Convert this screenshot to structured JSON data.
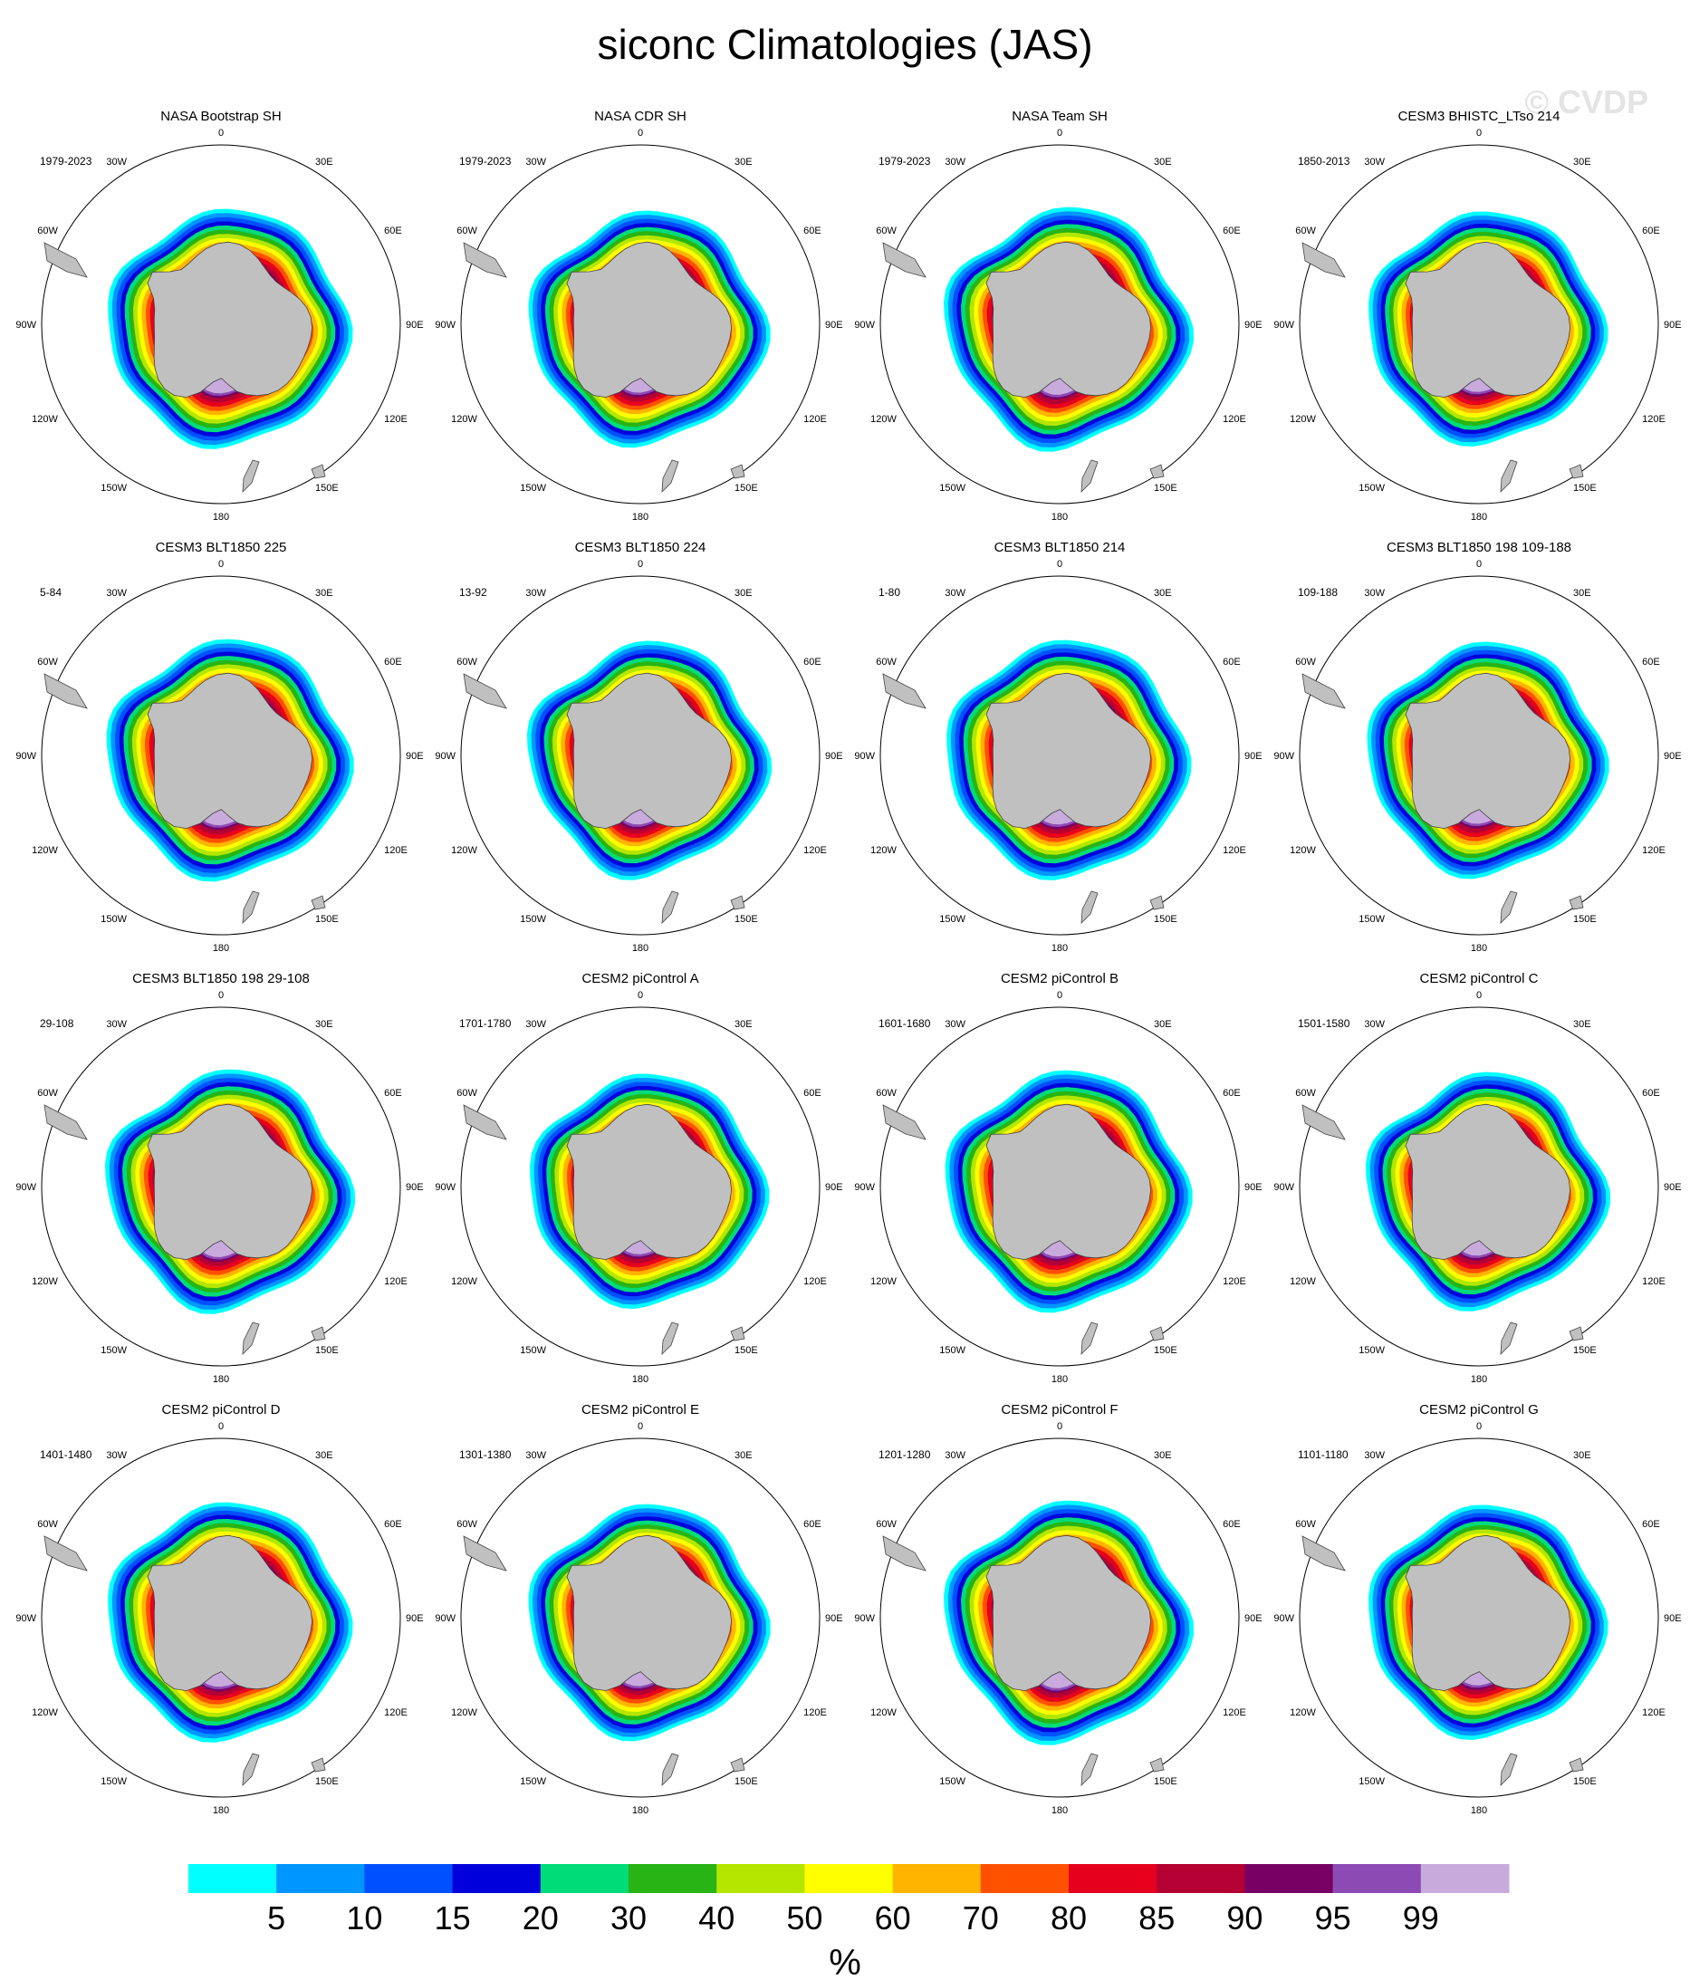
{
  "title": "siconc Climatologies (JAS)",
  "watermark": "© CVDP",
  "lon_labels": [
    "0",
    "30E",
    "60E",
    "90E",
    "120E",
    "150E",
    "180",
    "150W",
    "120W",
    "90W",
    "60W",
    "30W"
  ],
  "panels": [
    {
      "title": "NASA Bootstrap SH",
      "years": "1979-2023"
    },
    {
      "title": "NASA CDR SH",
      "years": "1979-2023"
    },
    {
      "title": "NASA Team SH",
      "years": "1979-2023"
    },
    {
      "title": "CESM3 BHISTC_LTso 214",
      "years": "1850-2013"
    },
    {
      "title": "CESM3 BLT1850 225",
      "years": "5-84"
    },
    {
      "title": "CESM3 BLT1850 224",
      "years": "13-92"
    },
    {
      "title": "CESM3 BLT1850 214",
      "years": "1-80"
    },
    {
      "title": "CESM3 BLT1850 198 109-188",
      "years": "109-188"
    },
    {
      "title": "CESM3 BLT1850 198 29-108",
      "years": "29-108"
    },
    {
      "title": "CESM2 piControl A",
      "years": "1701-1780"
    },
    {
      "title": "CESM2 piControl B",
      "years": "1601-1680"
    },
    {
      "title": "CESM2 piControl C",
      "years": "1501-1580"
    },
    {
      "title": "CESM2 piControl D",
      "years": "1401-1480"
    },
    {
      "title": "CESM2 piControl E",
      "years": "1301-1380"
    },
    {
      "title": "CESM2 piControl F",
      "years": "1201-1280"
    },
    {
      "title": "CESM2 piControl G",
      "years": "1101-1180"
    }
  ],
  "chart_data": {
    "type": "heatmap",
    "projection": "south-polar-stereographic",
    "variable": "siconc",
    "season": "JAS",
    "units": "%",
    "colorbar": {
      "levels": [
        5,
        10,
        15,
        20,
        30,
        40,
        50,
        60,
        70,
        80,
        85,
        90,
        95,
        99
      ],
      "colors": [
        "#00ffff",
        "#0096ff",
        "#0050ff",
        "#0000dc",
        "#00dc78",
        "#28b414",
        "#b4e600",
        "#ffff00",
        "#ffb400",
        "#ff5000",
        "#e6001e",
        "#b40032",
        "#780064",
        "#8c4bb4",
        "#c8aadc"
      ],
      "label": "%"
    },
    "land_color": "#c0c0c0"
  }
}
